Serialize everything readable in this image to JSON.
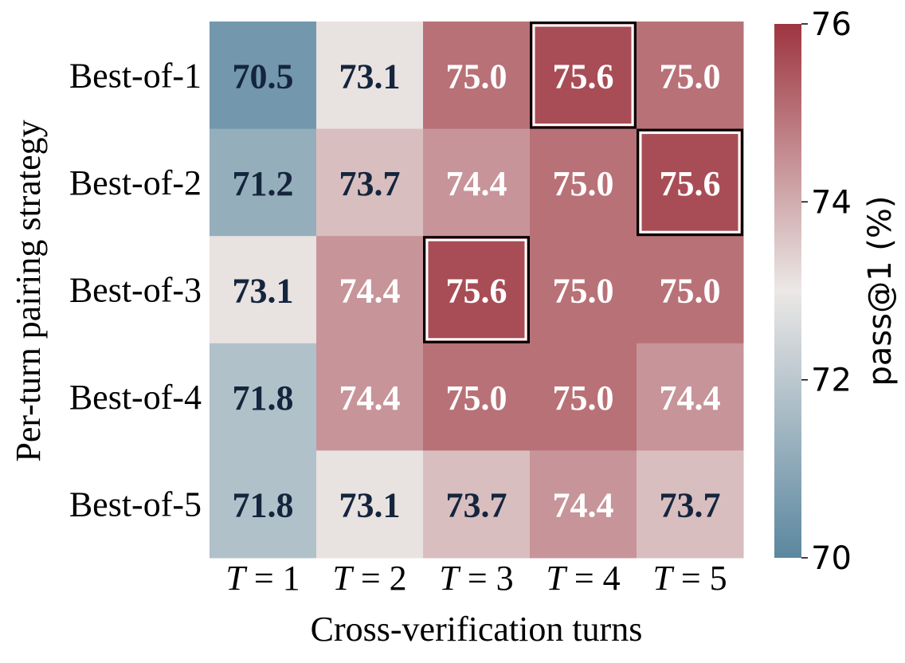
{
  "chart_data": {
    "type": "heatmap",
    "title": "",
    "xlabel": "Cross-verification turns",
    "ylabel": "Per-turn pairing strategy",
    "x_categories": [
      "T = 1",
      "T = 2",
      "T = 3",
      "T = 4",
      "T = 5"
    ],
    "y_categories": [
      "Best-of-1",
      "Best-of-2",
      "Best-of-3",
      "Best-of-4",
      "Best-of-5"
    ],
    "values": [
      [
        70.5,
        73.1,
        75.0,
        75.6,
        75.0
      ],
      [
        71.2,
        73.7,
        74.4,
        75.0,
        75.6
      ],
      [
        73.1,
        74.4,
        75.6,
        75.0,
        75.0
      ],
      [
        71.8,
        74.4,
        75.0,
        75.0,
        74.4
      ],
      [
        71.8,
        73.1,
        73.7,
        74.4,
        73.7
      ]
    ],
    "highlighted_cells": [
      [
        0,
        3
      ],
      [
        1,
        4
      ],
      [
        2,
        2
      ]
    ],
    "colorbar": {
      "label": "pass@1 (%)",
      "range": [
        70,
        76
      ],
      "ticks": [
        70,
        72,
        74,
        76
      ]
    },
    "colors": {
      "low": "#5b87a0",
      "mid": "#ebe8e6",
      "high": "#9e3540",
      "text_dark": "#14253d",
      "text_light": "#ffffff"
    }
  }
}
